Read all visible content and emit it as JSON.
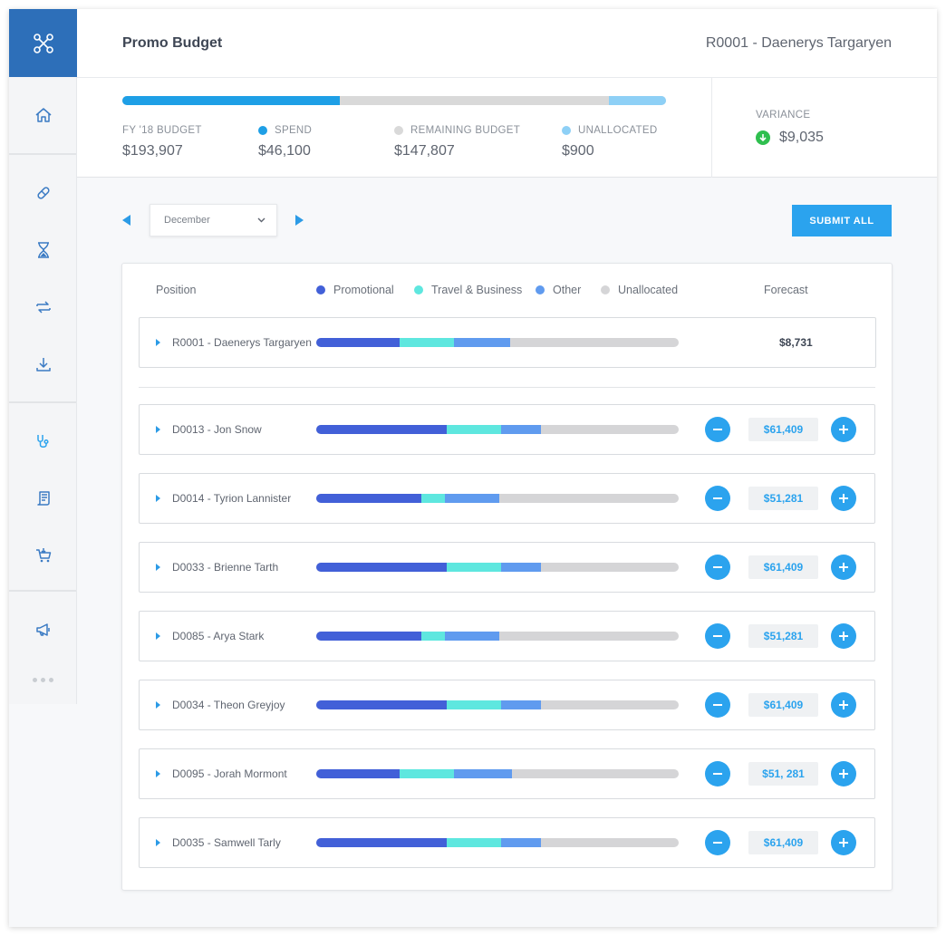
{
  "colors": {
    "accent": "#2ba3ee",
    "promotional": "#4260d8",
    "travel_business": "#5ee7df",
    "other": "#609bef",
    "unallocated": "#d5d5d7",
    "variance_down": "#2fbf4f"
  },
  "sidebar": {
    "logo_icon": "network-nodes-icon",
    "groups": [
      [
        {
          "name": "home",
          "icon": "home-icon"
        }
      ],
      [
        {
          "name": "pills",
          "icon": "pill-icon"
        },
        {
          "name": "hourglass",
          "icon": "hourglass-icon"
        },
        {
          "name": "transfer",
          "icon": "transfer-arrows-icon"
        },
        {
          "name": "download",
          "icon": "download-icon"
        }
      ],
      [
        {
          "name": "stethoscope",
          "icon": "stethoscope-icon"
        },
        {
          "name": "receipt",
          "icon": "receipt-icon"
        },
        {
          "name": "cart",
          "icon": "cart-icon"
        }
      ],
      [
        {
          "name": "megaphone",
          "icon": "megaphone-icon"
        }
      ]
    ],
    "more_icon": "more-dots-icon"
  },
  "header": {
    "title": "Promo Budget",
    "user": "R0001 - Daenerys Targaryen"
  },
  "budget": {
    "allocation": {
      "spend": 0.4,
      "remaining": 0.495,
      "unallocated": 0.105
    },
    "fy_label": "FY '18 BUDGET",
    "fy_value": "$193,907",
    "spend_label": "SPEND",
    "spend_value": "$46,100",
    "remaining_label": "REMAINING BUDGET",
    "remaining_value": "$147,807",
    "unallocated_label": "UNALLOCATED",
    "unallocated_value": "$900",
    "variance_label": "VARIANCE",
    "variance_value": "$9,035"
  },
  "month": {
    "selected": "December"
  },
  "submit_label": "SUBMIT ALL",
  "table": {
    "col_position": "Position",
    "col_forecast": "Forecast",
    "legend": {
      "promotional": "Promotional",
      "travel": "Travel & Business",
      "other": "Other",
      "unallocated": "Unallocated"
    },
    "owner": {
      "name": "R0001 - Daenerys Targaryen",
      "forecast": "$8,731",
      "split": [
        0.23,
        0.15,
        0.155
      ]
    },
    "rows": [
      {
        "name": "D0013 - Jon Snow",
        "forecast": "$61,409",
        "split": [
          0.36,
          0.15,
          0.11
        ]
      },
      {
        "name": "D0014 - Tyrion Lannister",
        "forecast": "$51,281",
        "split": [
          0.29,
          0.065,
          0.15
        ]
      },
      {
        "name": "D0033 - Brienne Tarth",
        "forecast": "$61,409",
        "split": [
          0.36,
          0.15,
          0.11
        ]
      },
      {
        "name": "D0085 - Arya Stark",
        "forecast": "$51,281",
        "split": [
          0.29,
          0.065,
          0.15
        ]
      },
      {
        "name": "D0034 - Theon Greyjoy",
        "forecast": "$61,409",
        "split": [
          0.36,
          0.15,
          0.11
        ]
      },
      {
        "name": "D0095 - Jorah Mormont",
        "forecast": "$51, 281",
        "split": [
          0.23,
          0.15,
          0.16
        ]
      },
      {
        "name": "D0035 - Samwell Tarly",
        "forecast": "$61,409",
        "split": [
          0.36,
          0.15,
          0.11
        ]
      }
    ]
  }
}
